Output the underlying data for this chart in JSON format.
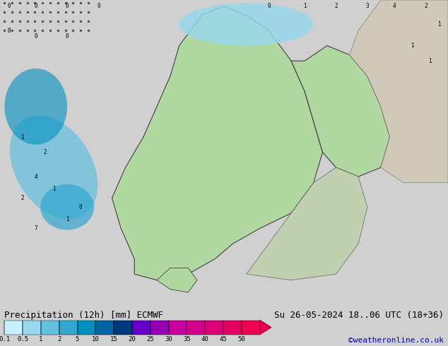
{
  "title_left": "Precipitation (12h) [mm] ECMWF",
  "title_right": "Su 26-05-2024 18..06 UTC (18+36)",
  "credit": "©weatheronline.co.uk",
  "colorbar_levels": [
    0.1,
    0.5,
    1,
    2,
    5,
    10,
    15,
    20,
    25,
    30,
    35,
    40,
    45,
    50
  ],
  "colorbar_colors": [
    "#c8f0ff",
    "#96d8f0",
    "#64c0e0",
    "#32a8d0",
    "#0090c0",
    "#0064a0",
    "#003880",
    "#6400c8",
    "#9600b4",
    "#c800a0",
    "#d2008c",
    "#dc0078",
    "#e60064",
    "#f00050"
  ],
  "background_color": "#d0d0d0",
  "map_background": "#d8d8d8",
  "label_fontsize": 9,
  "credit_color": "#0000cc",
  "title_fontsize": 9
}
